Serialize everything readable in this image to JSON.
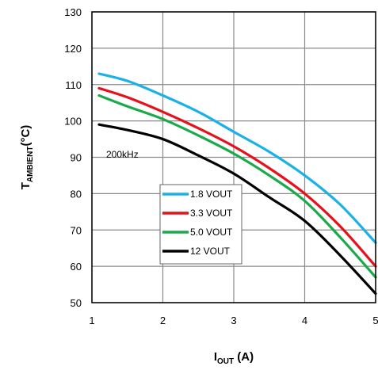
{
  "chart_data": {
    "type": "line",
    "xlabel": {
      "main": "I",
      "sub": "OUT",
      "suffix": " (A)"
    },
    "ylabel": {
      "main": "T",
      "sub": "AMBIENT",
      "suffix": "(°C)"
    },
    "xlim": [
      1,
      5
    ],
    "ylim": [
      50,
      130
    ],
    "xticks": [
      1,
      2,
      3,
      4,
      5
    ],
    "yticks": [
      50,
      60,
      70,
      80,
      90,
      100,
      110,
      120,
      130
    ],
    "grid": true,
    "legend_placement": "center-left",
    "annotation": "200kHz",
    "series": [
      {
        "name": "1.8 VOUT",
        "color": "#1ab0e8",
        "x": [
          1.1,
          1.5,
          2,
          2.5,
          3,
          3.5,
          4,
          4.5,
          5
        ],
        "y": [
          113,
          111,
          107,
          102.5,
          97,
          91.5,
          85,
          77,
          66.5
        ]
      },
      {
        "name": "3.3 VOUT",
        "color": "#e8101a",
        "x": [
          1.1,
          1.5,
          2,
          2.5,
          3,
          3.5,
          4,
          4.5,
          5
        ],
        "y": [
          109,
          106.5,
          102.5,
          98,
          93,
          87,
          80,
          71,
          60
        ]
      },
      {
        "name": "5.0 VOUT",
        "color": "#1aaa4a",
        "x": [
          1.1,
          1.5,
          2,
          2.5,
          3,
          3.5,
          4,
          4.5,
          5
        ],
        "y": [
          107,
          104,
          100.5,
          96,
          91,
          85,
          78,
          68,
          57
        ]
      },
      {
        "name": "12 VOUT",
        "color": "#000000",
        "x": [
          1.1,
          1.5,
          2,
          2.5,
          3,
          3.5,
          4,
          4.5,
          5
        ],
        "y": [
          99,
          97.5,
          95,
          90.5,
          85.5,
          79,
          72.5,
          63,
          52.5
        ]
      }
    ]
  }
}
